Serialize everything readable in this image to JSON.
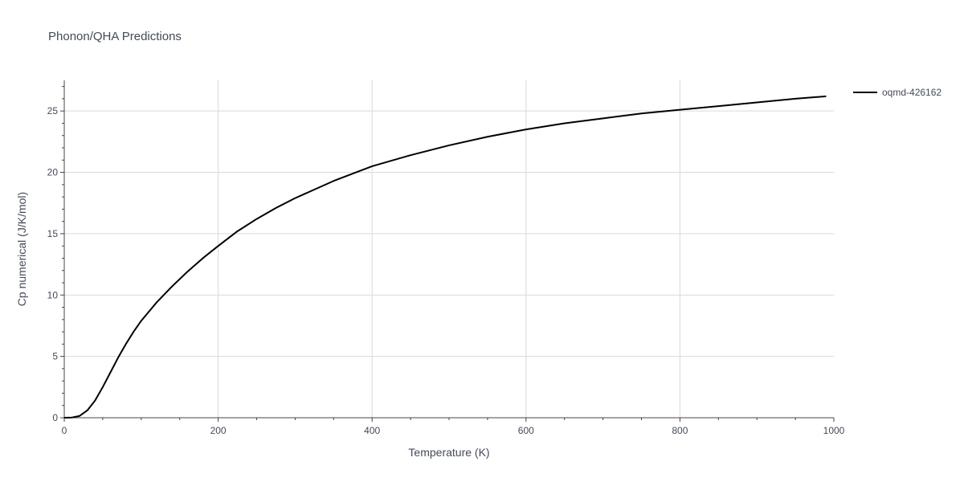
{
  "chart_data": {
    "type": "line",
    "title": "Phonon/QHA Predictions",
    "xlabel": "Temperature (K)",
    "ylabel": "Cp numerical (J/K/mol)",
    "xlim": [
      0,
      1000
    ],
    "ylim": [
      0,
      27.5
    ],
    "x_ticks": [
      0,
      200,
      400,
      600,
      800,
      1000
    ],
    "y_ticks": [
      0,
      5,
      10,
      15,
      20,
      25
    ],
    "grid": true,
    "legend_position": "top-right",
    "series": [
      {
        "name": "oqmd-426162",
        "color": "#000000",
        "x": [
          0,
          10,
          20,
          30,
          40,
          50,
          60,
          70,
          80,
          90,
          100,
          120,
          140,
          160,
          180,
          200,
          225,
          250,
          275,
          300,
          350,
          400,
          450,
          500,
          550,
          600,
          650,
          700,
          750,
          800,
          850,
          900,
          950,
          990
        ],
        "y": [
          0,
          0.02,
          0.15,
          0.6,
          1.4,
          2.5,
          3.7,
          4.9,
          6.0,
          7.0,
          7.9,
          9.4,
          10.7,
          11.9,
          13.0,
          14.0,
          15.2,
          16.2,
          17.1,
          17.9,
          19.3,
          20.5,
          21.4,
          22.2,
          22.9,
          23.5,
          24.0,
          24.4,
          24.8,
          25.1,
          25.4,
          25.7,
          26.0,
          26.2
        ]
      }
    ]
  }
}
